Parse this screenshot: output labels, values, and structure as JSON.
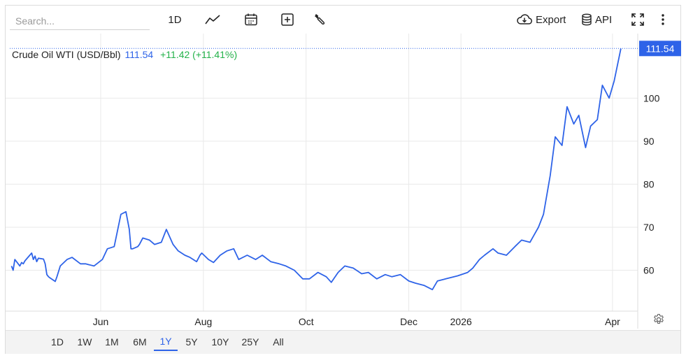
{
  "search": {
    "placeholder": "Search..."
  },
  "toolbar": {
    "interval_label": "1D",
    "export_label": "Export",
    "api_label": "API",
    "icons": [
      "line-chart-icon",
      "calendar-icon",
      "plus-box-icon",
      "wrench-icon",
      "cloud-download-icon",
      "database-icon",
      "fullscreen-icon",
      "more-vertical-icon"
    ]
  },
  "legend": {
    "name": "Crude Oil WTI (USD/Bbl)",
    "last": "111.54",
    "change": "+11.42 (+11.41%)"
  },
  "ranges": [
    "1D",
    "1W",
    "1M",
    "6M",
    "1Y",
    "5Y",
    "10Y",
    "25Y",
    "All"
  ],
  "active_range": "1Y",
  "colors": {
    "line": "#2e63e8",
    "up": "#24b24a",
    "grid": "#e9e9e9"
  },
  "chart_data": {
    "type": "line",
    "title": "Crude Oil WTI (USD/Bbl)",
    "x_ticks": [
      "Jun",
      "Aug",
      "Oct",
      "Dec",
      "2026",
      "Apr"
    ],
    "y_ticks": [
      "60",
      "70",
      "80",
      "90",
      "100"
    ],
    "ylim": [
      50.5,
      115
    ],
    "last_value_label": "111.54",
    "series": [
      {
        "name": "Crude Oil WTI (USD/Bbl)",
        "x": [
          "2025-04-09",
          "2025-04-10",
          "2025-04-11",
          "2025-04-14",
          "2025-04-15",
          "2025-04-16",
          "2025-04-17",
          "2025-04-21",
          "2025-04-22",
          "2025-04-23",
          "2025-04-24",
          "2025-04-25",
          "2025-04-28",
          "2025-04-29",
          "2025-04-30",
          "2025-05-01",
          "2025-05-02",
          "2025-05-05",
          "2025-05-06",
          "2025-05-08",
          "2025-05-12",
          "2025-05-15",
          "2025-05-20",
          "2025-05-23",
          "2025-05-28",
          "2025-06-02",
          "2025-06-05",
          "2025-06-09",
          "2025-06-13",
          "2025-06-16",
          "2025-06-18",
          "2025-06-19",
          "2025-06-20",
          "2025-06-23",
          "2025-06-24",
          "2025-06-26",
          "2025-06-30",
          "2025-07-03",
          "2025-07-07",
          "2025-07-10",
          "2025-07-14",
          "2025-07-17",
          "2025-07-21",
          "2025-07-24",
          "2025-07-28",
          "2025-07-30",
          "2025-07-31",
          "2025-08-04",
          "2025-08-07",
          "2025-08-11",
          "2025-08-15",
          "2025-08-19",
          "2025-08-22",
          "2025-08-27",
          "2025-09-01",
          "2025-09-05",
          "2025-09-10",
          "2025-09-15",
          "2025-09-19",
          "2025-09-24",
          "2025-09-29",
          "2025-10-03",
          "2025-10-08",
          "2025-10-13",
          "2025-10-16",
          "2025-10-20",
          "2025-10-24",
          "2025-10-29",
          "2025-11-03",
          "2025-11-07",
          "2025-11-12",
          "2025-11-17",
          "2025-11-21",
          "2025-11-26",
          "2025-12-01",
          "2025-12-05",
          "2025-12-10",
          "2025-12-15",
          "2025-12-18",
          "2025-12-23",
          "2025-12-30",
          "2026-01-05",
          "2026-01-08",
          "2026-01-12",
          "2026-01-15",
          "2026-01-20",
          "2026-01-23",
          "2026-01-28",
          "2026-02-02",
          "2026-02-06",
          "2026-02-11",
          "2026-02-16",
          "2026-02-19",
          "2026-02-23",
          "2026-02-26",
          "2026-03-02",
          "2026-03-05",
          "2026-03-09",
          "2026-03-12",
          "2026-03-16",
          "2026-03-19",
          "2026-03-23",
          "2026-03-26",
          "2026-03-30",
          "2026-04-02",
          "2026-04-06"
        ],
        "y": [
          61.0,
          60.0,
          62.5,
          61.0,
          61.8,
          61.5,
          62.2,
          64.0,
          62.5,
          63.3,
          62.0,
          62.8,
          62.6,
          61.5,
          59.0,
          58.5,
          58.2,
          57.4,
          58.5,
          61.0,
          62.5,
          63.0,
          61.5,
          61.5,
          61.0,
          62.5,
          65.0,
          65.5,
          73.0,
          73.6,
          69.5,
          65.0,
          65.0,
          65.5,
          66.0,
          67.5,
          67.0,
          66.0,
          66.5,
          69.5,
          66.0,
          64.5,
          63.5,
          63.0,
          62.0,
          63.5,
          64.0,
          62.5,
          61.8,
          63.5,
          64.5,
          65.0,
          62.5,
          63.5,
          62.5,
          63.5,
          62.0,
          61.5,
          61.0,
          60.0,
          58.0,
          58.0,
          59.5,
          58.5,
          57.2,
          59.5,
          61.0,
          60.5,
          59.2,
          59.5,
          58.0,
          59.0,
          58.5,
          59.0,
          57.5,
          57.0,
          56.5,
          55.5,
          57.5,
          58.0,
          58.7,
          59.5,
          60.5,
          62.5,
          63.5,
          65.0,
          64.0,
          63.5,
          65.5,
          67.0,
          66.5,
          70.0,
          73.0,
          82.0,
          91.0,
          89.0,
          98.0,
          94.0,
          96.0,
          88.5,
          93.5,
          95.0,
          103.0,
          100.0,
          104.0,
          111.54
        ]
      }
    ]
  }
}
